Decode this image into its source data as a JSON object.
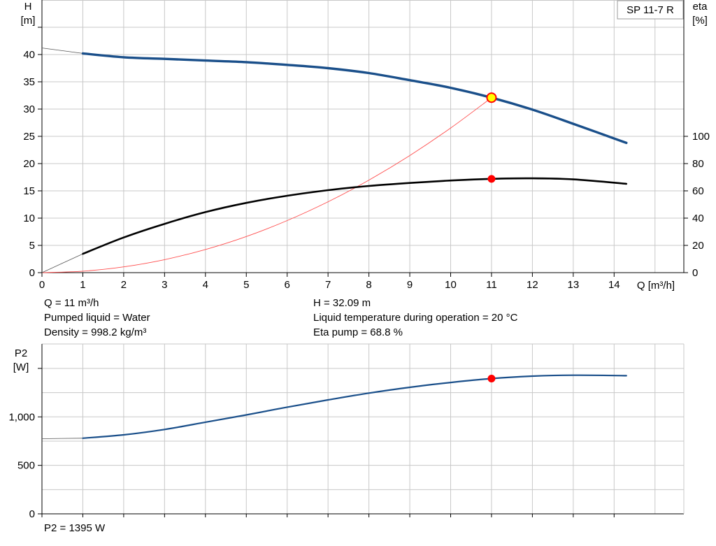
{
  "pump_model": "SP 11-7 R",
  "duty_point_text": {
    "q": "Q = 11 m³/h",
    "h": "H = 32.09 m",
    "pumped_liquid": "Pumped liquid = Water",
    "liquid_temperature": "Liquid temperature during operation = 20 °C",
    "density": "Density = 998.2 kg/m³",
    "eta_pump": "Eta pump = 68.8 %",
    "p2": "P2 = 1395 W"
  },
  "colors": {
    "head_curve": "#1a4f8a",
    "eta_curve": "#000000",
    "system_curve": "#ff4d4d",
    "p2_curve": "#1a4f8a",
    "duty_point_fill": "#ff0000",
    "head_duty_point_fill": "#ffff00",
    "grid": "#c8c8c8",
    "axis": "#000000"
  },
  "chart_data": [
    {
      "type": "line",
      "panel": "head-and-efficiency",
      "xlabel": "Q [m³/h]",
      "xlim": [
        0,
        15
      ],
      "x_ticks": [
        0,
        1,
        2,
        3,
        4,
        5,
        6,
        7,
        8,
        9,
        10,
        11,
        12,
        13,
        14
      ],
      "left_axis": {
        "label_top": "H",
        "label_unit": "[m]",
        "ylim": [
          0,
          50
        ],
        "ticks": [
          0,
          5,
          10,
          15,
          20,
          25,
          30,
          35,
          40
        ]
      },
      "right_axis": {
        "label_top": "eta",
        "label_unit": "[%]",
        "ylim": [
          0,
          100
        ],
        "ticks": [
          0,
          20,
          40,
          60,
          80,
          100
        ],
        "zero_at_left_value": 0,
        "top_at_left_value": 25
      },
      "grid": true,
      "series": [
        {
          "id": "head",
          "axis": "left",
          "x": [
            0,
            1,
            2,
            3,
            4,
            5,
            6,
            7,
            8,
            9,
            10,
            11,
            12,
            13,
            14.3
          ],
          "y": [
            41.2,
            40.2,
            39.5,
            39.2,
            38.9,
            38.6,
            38.1,
            37.5,
            36.6,
            35.3,
            33.9,
            32.09,
            29.9,
            27.3,
            23.8
          ],
          "extrapolated_to": 1
        },
        {
          "id": "eta",
          "axis": "right",
          "x": [
            0,
            1,
            2,
            3,
            4,
            5,
            6,
            7,
            8,
            9,
            10,
            11,
            12,
            13,
            14.3
          ],
          "y": [
            0,
            13.8,
            25.8,
            35.8,
            44.4,
            51.2,
            56.4,
            60.5,
            63.6,
            65.8,
            67.6,
            68.8,
            69.2,
            68.4,
            65.2
          ],
          "extrapolated_to": 1
        },
        {
          "id": "system",
          "axis": "left",
          "x": [
            0,
            1,
            2,
            3,
            4,
            5,
            6,
            7,
            8,
            9,
            10,
            11
          ],
          "y": [
            0,
            0.27,
            1.06,
            2.39,
            4.24,
            6.63,
            9.55,
            13.0,
            16.97,
            21.48,
            26.52,
            32.09
          ]
        }
      ],
      "duty_points": [
        {
          "series": "head",
          "x": 11,
          "y": 32.09
        },
        {
          "series": "eta",
          "x": 11,
          "y": 68.8
        }
      ]
    },
    {
      "type": "line",
      "panel": "power",
      "left_axis": {
        "label_top": "P2",
        "label_unit": "[W]",
        "ylim": [
          0,
          1550
        ],
        "ticks": [
          0,
          500,
          1000
        ],
        "tick_labels": [
          "0",
          "500",
          "1,000"
        ]
      },
      "xlim": [
        0,
        15
      ],
      "x_ticks": [
        0,
        1,
        2,
        3,
        4,
        5,
        6,
        7,
        8,
        9,
        10,
        11,
        12,
        13,
        14
      ],
      "grid": true,
      "series": [
        {
          "id": "p2",
          "x": [
            0,
            1,
            2,
            3,
            4,
            5,
            6,
            7,
            8,
            9,
            10,
            11,
            12,
            13,
            14.3
          ],
          "y": [
            775,
            780,
            815,
            870,
            945,
            1020,
            1100,
            1175,
            1245,
            1305,
            1355,
            1395,
            1420,
            1430,
            1425
          ],
          "extrapolated_to": 1
        }
      ],
      "duty_points": [
        {
          "series": "p2",
          "x": 11,
          "y": 1395
        }
      ]
    }
  ]
}
